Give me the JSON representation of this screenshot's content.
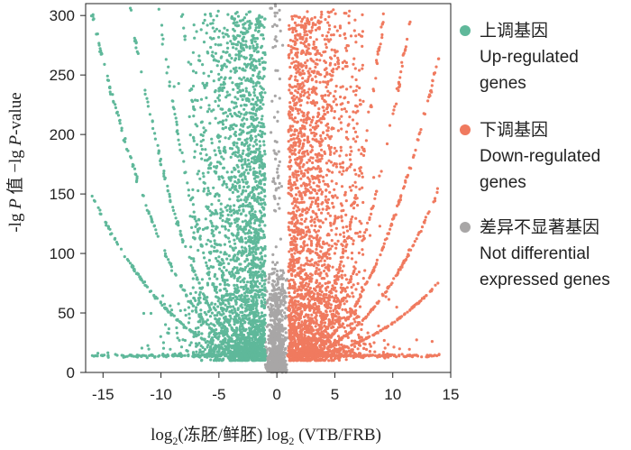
{
  "chart_data": {
    "type": "scatter",
    "title": "",
    "xlabel": "log₂(冻胚/鲜胚) log₂ (VTB/FRB)",
    "ylabel": "-lg P 值 -lg P-value",
    "xlim": [
      -16.5,
      15
    ],
    "ylim": [
      0,
      310
    ],
    "x_ticks": [
      "-15",
      "-10",
      "-5",
      "0",
      "5",
      "10",
      "15"
    ],
    "x_tick_values": [
      -15,
      -10,
      -5,
      0,
      5,
      10,
      15
    ],
    "y_ticks": [
      "0",
      "50",
      "100",
      "150",
      "200",
      "250",
      "300"
    ],
    "y_tick_values": [
      0,
      50,
      100,
      150,
      200,
      250,
      300
    ],
    "grid": false,
    "legend_position": "right",
    "series": [
      {
        "key": "up",
        "legend": [
          "上调基因",
          "Up-regulated",
          "genes"
        ],
        "color": "#5fb89a",
        "x_range": [
          -16,
          -1
        ],
        "points_sample": [
          [
            -12.5,
            300
          ],
          [
            -10,
            150
          ],
          [
            -8,
            100
          ],
          [
            -5,
            55
          ],
          [
            -3,
            300
          ],
          [
            -2,
            150
          ],
          [
            -1.2,
            50
          ],
          [
            -15,
            14
          ],
          [
            -6,
            14
          ]
        ]
      },
      {
        "key": "down",
        "legend": [
          "下调基因",
          "Down-regulated",
          "genes"
        ],
        "color": "#f07a5f",
        "x_range": [
          1,
          14
        ],
        "points_sample": [
          [
            12.5,
            270
          ],
          [
            11,
            150
          ],
          [
            9,
            120
          ],
          [
            7,
            80
          ],
          [
            3,
            300
          ],
          [
            2,
            150
          ],
          [
            1.2,
            50
          ],
          [
            14,
            14
          ],
          [
            6,
            14
          ]
        ]
      },
      {
        "key": "ns",
        "legend": [
          "差异不显著基因",
          "Not differential",
          "expressed genes"
        ],
        "color": "#a8a6a6",
        "x_range": [
          -1,
          1
        ],
        "points_sample": [
          [
            0,
            310
          ],
          [
            -0.5,
            60
          ],
          [
            0.5,
            40
          ],
          [
            0,
            5
          ]
        ]
      }
    ]
  }
}
